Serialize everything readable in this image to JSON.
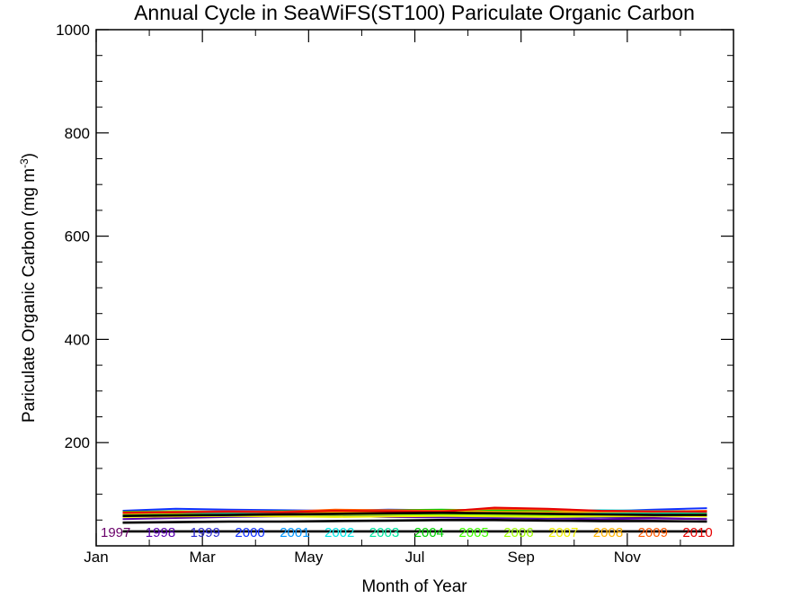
{
  "chart_data": {
    "type": "line",
    "title": "Annual Cycle in SeaWiFS(ST100) Pariculate Organic Carbon",
    "xlabel": "Month of Year",
    "ylabel_main": "Pariculate Organic Carbon (mg m",
    "ylabel_sup": "-3",
    "ylabel_close": ")",
    "xlim": [
      1,
      13
    ],
    "ylim": [
      0,
      1000
    ],
    "x_ticks": [
      {
        "value": 1,
        "label": "Jan"
      },
      {
        "value": 3,
        "label": "Mar"
      },
      {
        "value": 5,
        "label": "May"
      },
      {
        "value": 7,
        "label": "Jul"
      },
      {
        "value": 9,
        "label": "Sep"
      },
      {
        "value": 11,
        "label": "Nov"
      }
    ],
    "y_ticks": [
      {
        "value": 200,
        "label": "200"
      },
      {
        "value": 400,
        "label": "400"
      },
      {
        "value": 600,
        "label": "600"
      },
      {
        "value": 800,
        "label": "800"
      },
      {
        "value": 1000,
        "label": "1000"
      }
    ],
    "x": [
      1.5,
      2.5,
      3.5,
      4.5,
      5.5,
      6.5,
      7.5,
      8.5,
      9.5,
      10.5,
      11.5,
      12.5
    ],
    "series": [
      {
        "name": "1997",
        "color": "#6a006a",
        "values": [
          null,
          null,
          null,
          null,
          null,
          null,
          null,
          null,
          55,
          56,
          54,
          52
        ]
      },
      {
        "name": "1998",
        "color": "#5a00b0",
        "values": [
          52,
          54,
          56,
          57,
          58,
          56,
          55,
          54,
          53,
          52,
          53,
          52
        ]
      },
      {
        "name": "1999",
        "color": "#2a2ad0",
        "values": [
          57,
          58,
          57,
          58,
          60,
          58,
          57,
          56,
          55,
          56,
          58,
          57
        ]
      },
      {
        "name": "2000",
        "color": "#1030ff",
        "values": [
          68,
          72,
          70,
          69,
          68,
          70,
          69,
          67,
          66,
          67,
          70,
          73
        ]
      },
      {
        "name": "2001",
        "color": "#0096ff",
        "values": [
          64,
          66,
          65,
          66,
          67,
          66,
          65,
          64,
          65,
          66,
          67,
          66
        ]
      },
      {
        "name": "2002",
        "color": "#00e6e6",
        "values": [
          65,
          66,
          67,
          66,
          68,
          67,
          66,
          67,
          68,
          69,
          68,
          67
        ]
      },
      {
        "name": "2003",
        "color": "#00e6a0",
        "values": [
          62,
          63,
          64,
          63,
          62,
          63,
          64,
          63,
          62,
          63,
          64,
          63
        ]
      },
      {
        "name": "2004",
        "color": "#00d200",
        "values": [
          66,
          67,
          66,
          67,
          68,
          69,
          70,
          69,
          68,
          67,
          66,
          67
        ]
      },
      {
        "name": "2005",
        "color": "#40ff00",
        "values": [
          58,
          59,
          60,
          61,
          62,
          61,
          60,
          59,
          58,
          59,
          60,
          59
        ]
      },
      {
        "name": "2006",
        "color": "#a0ff00",
        "values": [
          60,
          61,
          60,
          61,
          60,
          61,
          62,
          61,
          60,
          61,
          60,
          61
        ]
      },
      {
        "name": "2007",
        "color": "#f0f000",
        "values": [
          56,
          57,
          58,
          57,
          56,
          57,
          58,
          57,
          56,
          57,
          58,
          57
        ]
      },
      {
        "name": "2008",
        "color": "#ffb400",
        "values": [
          63,
          65,
          67,
          66,
          65,
          66,
          67,
          66,
          65,
          66,
          67,
          66
        ]
      },
      {
        "name": "2009",
        "color": "#ff5a00",
        "values": [
          65,
          66,
          67,
          66,
          70,
          69,
          68,
          72,
          70,
          67,
          66,
          68
        ]
      },
      {
        "name": "2010",
        "color": "#e60000",
        "values": [
          64,
          65,
          66,
          65,
          68,
          67,
          66,
          74,
          72,
          68,
          67,
          66
        ]
      },
      {
        "name": "",
        "color": "#000000",
        "values": [
          58,
          59,
          60,
          61,
          62,
          63,
          64,
          63,
          62,
          61,
          60,
          60
        ]
      },
      {
        "name": "",
        "color": "#000000",
        "values": [
          45,
          46,
          47,
          47,
          48,
          49,
          50,
          50,
          49,
          48,
          48,
          47
        ]
      },
      {
        "name": "",
        "color": "#000000",
        "values": [
          28,
          28,
          28,
          28,
          28,
          28,
          28,
          28,
          28,
          28,
          28,
          28
        ]
      }
    ],
    "grid": false,
    "legend": "bottom inside plot"
  }
}
